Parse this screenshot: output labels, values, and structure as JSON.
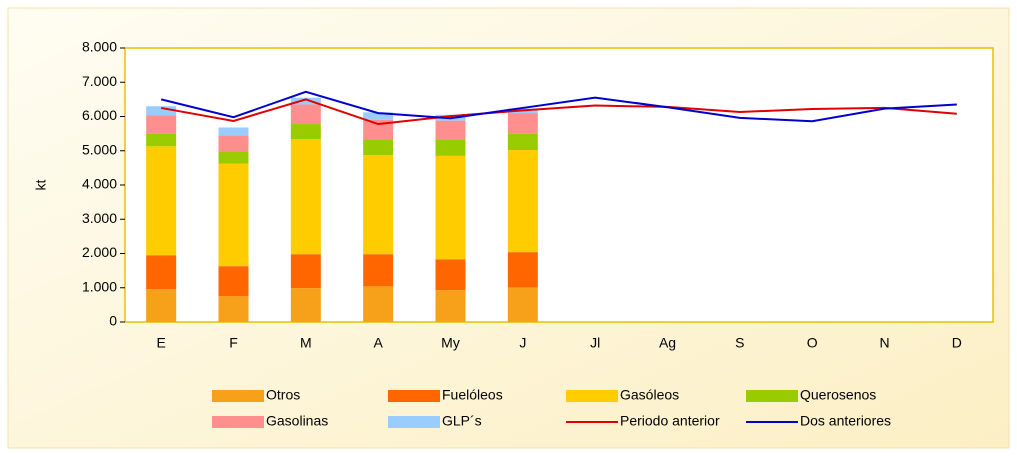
{
  "chart_data": {
    "type": "bar",
    "stacked": true,
    "y_label": "kt",
    "categories": [
      "E",
      "F",
      "M",
      "A",
      "My",
      "J",
      "Jl",
      "Ag",
      "S",
      "O",
      "N",
      "D"
    ],
    "ylim": [
      0,
      8000
    ],
    "yticks": [
      0,
      {
        "value": 1000,
        "label": "1.000"
      },
      {
        "value": 2000,
        "label": "2.000"
      },
      {
        "value": 3000,
        "label": "3.000"
      },
      {
        "value": 4000,
        "label": "4.000"
      },
      {
        "value": 5000,
        "label": "5.000"
      },
      {
        "value": 6000,
        "label": "6.000"
      },
      {
        "value": 7000,
        "label": "7.000"
      },
      {
        "value": 8000,
        "label": "8.000"
      }
    ],
    "series": [
      {
        "name": "Otros",
        "type": "bar",
        "color": "#F7A11A",
        "values": [
          960,
          750,
          990,
          1040,
          930,
          1010,
          null,
          null,
          null,
          null,
          null,
          null
        ]
      },
      {
        "name": "Fuelóleos",
        "type": "bar",
        "color": "#FF6600",
        "values": [
          990,
          880,
          990,
          940,
          900,
          1030,
          null,
          null,
          null,
          null,
          null,
          null
        ]
      },
      {
        "name": "Gasóleos",
        "type": "bar",
        "color": "#FFCC00",
        "values": [
          3180,
          2990,
          3360,
          2890,
          3020,
          2980,
          null,
          null,
          null,
          null,
          null,
          null
        ]
      },
      {
        "name": "Querosenos",
        "type": "bar",
        "color": "#99CC00",
        "values": [
          370,
          360,
          440,
          460,
          480,
          490,
          null,
          null,
          null,
          null,
          null,
          null
        ]
      },
      {
        "name": "Gasolinas",
        "type": "bar",
        "color": "#FF8F8F",
        "values": [
          530,
          470,
          570,
          570,
          550,
          590,
          null,
          null,
          null,
          null,
          null,
          null
        ]
      },
      {
        "name": "GLP´s",
        "type": "bar",
        "color": "#99CCFF",
        "values": [
          270,
          230,
          200,
          220,
          170,
          130,
          null,
          null,
          null,
          null,
          null,
          null
        ]
      },
      {
        "name": "Periodo anterior",
        "type": "line",
        "color": "#E00000",
        "values": [
          6250,
          5870,
          6500,
          5780,
          6010,
          6180,
          6320,
          6280,
          6130,
          6220,
          6250,
          6080
        ]
      },
      {
        "name": "Dos anteriores",
        "type": "line",
        "color": "#0000CC",
        "values": [
          6500,
          5980,
          6720,
          6100,
          5950,
          6250,
          6550,
          6270,
          5960,
          5860,
          6230,
          6350
        ]
      }
    ]
  }
}
